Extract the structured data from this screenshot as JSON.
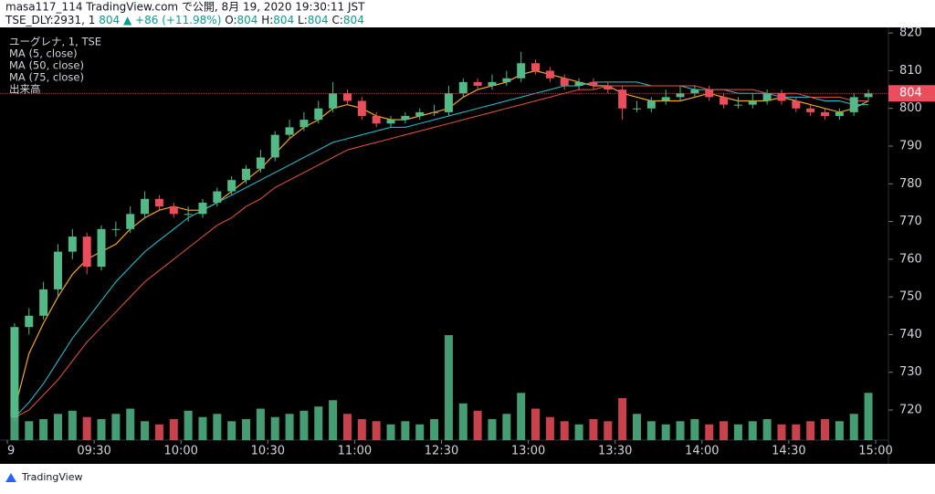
{
  "header": {
    "line1": "masa117_114 TradingView.com で公開, 8月 19, 2020 19:30:11 JST",
    "symbol": "TSE_DLY:2931, 1",
    "price": "804",
    "change": "▲ +86 (+11.98%)",
    "o_label": "O:",
    "o": "804",
    "h_label": "H:",
    "h": "804",
    "l_label": "L:",
    "l": "804",
    "c_label": "C:",
    "c": "804"
  },
  "footer": {
    "brand": "TradingView"
  },
  "chart_data": {
    "type": "candlestick",
    "title": "ユーグレナ, 1, TSE",
    "volume_label": "出来高",
    "up_color": "#53b987",
    "down_color": "#eb4d5c",
    "categories": [
      "09:00",
      "09:05",
      "09:10",
      "09:15",
      "09:20",
      "09:25",
      "09:30",
      "09:35",
      "09:40",
      "09:45",
      "09:50",
      "09:55",
      "10:00",
      "10:05",
      "10:10",
      "10:15",
      "10:20",
      "10:25",
      "10:30",
      "10:35",
      "10:40",
      "10:45",
      "10:50",
      "10:55",
      "11:00",
      "11:05",
      "11:10",
      "11:15",
      "11:20",
      "11:25",
      "12:30",
      "12:35",
      "12:40",
      "12:45",
      "12:50",
      "12:55",
      "13:00",
      "13:05",
      "13:10",
      "13:15",
      "13:20",
      "13:25",
      "13:30",
      "13:35",
      "13:40",
      "13:45",
      "13:50",
      "13:55",
      "14:00",
      "14:05",
      "14:10",
      "14:15",
      "14:20",
      "14:25",
      "14:30",
      "14:35",
      "14:40",
      "14:45",
      "14:50",
      "14:55"
    ],
    "candles": {
      "open": [
        718,
        742,
        745,
        752,
        762,
        766,
        758,
        768,
        768,
        772,
        776,
        774,
        772,
        772,
        775,
        778,
        781,
        784,
        787,
        793,
        795,
        797,
        800,
        804,
        802,
        798,
        796,
        797,
        798,
        799,
        799,
        804,
        807,
        806,
        807,
        808,
        812,
        810,
        808,
        806,
        807,
        806,
        805,
        800,
        800,
        802,
        803,
        804,
        805,
        803,
        801,
        801,
        802,
        804,
        802,
        800,
        799,
        798,
        799,
        803
      ],
      "high": [
        743,
        747,
        754,
        764,
        768,
        767,
        769,
        770,
        774,
        778,
        777,
        775,
        774,
        776,
        779,
        782,
        785,
        789,
        794,
        797,
        799,
        802,
        807,
        805,
        803,
        799,
        798,
        799,
        800,
        801,
        806,
        808,
        808,
        809,
        810,
        815,
        813,
        811,
        809,
        808,
        808,
        807,
        806,
        802,
        803,
        805,
        806,
        806,
        806,
        804,
        803,
        804,
        805,
        805,
        803,
        801,
        800,
        800,
        804,
        805
      ],
      "low": [
        717,
        740,
        744,
        750,
        760,
        756,
        757,
        766,
        767,
        771,
        773,
        771,
        770,
        771,
        774,
        777,
        780,
        783,
        786,
        792,
        794,
        796,
        799,
        801,
        797,
        795,
        795,
        796,
        797,
        798,
        798,
        803,
        805,
        805,
        806,
        807,
        809,
        807,
        805,
        805,
        805,
        804,
        797,
        799,
        799,
        801,
        802,
        803,
        802,
        800,
        800,
        800,
        801,
        801,
        799,
        798,
        797,
        797,
        798,
        802
      ],
      "close": [
        742,
        745,
        752,
        762,
        766,
        758,
        768,
        768,
        772,
        776,
        774,
        772,
        772,
        775,
        778,
        781,
        784,
        787,
        793,
        795,
        797,
        800,
        804,
        802,
        798,
        796,
        797,
        798,
        799,
        799,
        804,
        807,
        806,
        807,
        808,
        812,
        810,
        808,
        806,
        807,
        806,
        805,
        800,
        800,
        802,
        803,
        804,
        805,
        803,
        801,
        801,
        802,
        804,
        802,
        800,
        799,
        798,
        799,
        803,
        804
      ]
    },
    "volume": [
      30,
      18,
      20,
      25,
      28,
      22,
      20,
      25,
      30,
      18,
      15,
      20,
      28,
      22,
      25,
      18,
      20,
      30,
      22,
      25,
      28,
      32,
      38,
      25,
      20,
      18,
      15,
      18,
      15,
      20,
      100,
      35,
      28,
      20,
      25,
      45,
      30,
      22,
      18,
      15,
      20,
      18,
      40,
      25,
      18,
      15,
      18,
      20,
      15,
      18,
      15,
      18,
      20,
      15,
      15,
      18,
      20,
      18,
      25,
      45
    ],
    "series": [
      {
        "name": "MA (5, close)",
        "color": "#f5a623",
        "values": [
          720,
          735,
          743,
          750,
          756,
          760,
          762,
          764,
          768,
          771,
          773,
          774,
          773,
          773,
          775,
          778,
          781,
          784,
          788,
          792,
          795,
          797,
          800,
          801,
          800,
          798,
          797,
          797,
          798,
          799,
          800,
          803,
          805,
          806,
          807,
          809,
          810,
          809,
          808,
          807,
          806,
          806,
          804,
          803,
          802,
          802,
          802,
          803,
          804,
          803,
          802,
          802,
          802,
          803,
          802,
          801,
          800,
          799,
          800,
          802
        ]
      },
      {
        "name": "MA (50, close)",
        "color": "#26c6da",
        "values": [
          718,
          722,
          727,
          733,
          739,
          744,
          749,
          754,
          758,
          762,
          765,
          768,
          771,
          773,
          775,
          777,
          779,
          781,
          783,
          785,
          787,
          789,
          791,
          792,
          793,
          794,
          795,
          795,
          796,
          797,
          798,
          799,
          800,
          801,
          802,
          803,
          804,
          805,
          806,
          806,
          807,
          807,
          807,
          807,
          806,
          806,
          806,
          805,
          805,
          805,
          804,
          804,
          804,
          803,
          803,
          803,
          802,
          802,
          801,
          801
        ]
      },
      {
        "name": "MA (75, close)",
        "color": "#e8553e",
        "values": [
          718,
          720,
          724,
          728,
          733,
          738,
          742,
          746,
          750,
          754,
          757,
          760,
          763,
          766,
          769,
          771,
          774,
          776,
          779,
          781,
          783,
          785,
          787,
          789,
          790,
          791,
          792,
          793,
          794,
          795,
          796,
          797,
          798,
          799,
          800,
          801,
          802,
          803,
          804,
          805,
          805,
          806,
          806,
          806,
          806,
          806,
          806,
          806,
          805,
          805,
          805,
          805,
          804,
          804,
          804,
          803,
          803,
          803,
          802,
          802
        ]
      }
    ],
    "ylim": [
      712,
      821.5
    ],
    "yticks": [
      720,
      730,
      740,
      750,
      760,
      770,
      780,
      790,
      800,
      810,
      820
    ],
    "xticks": [
      {
        "value": "09:00",
        "label": "9"
      },
      "09:30",
      "10:00",
      "10:30",
      "11:00",
      "12:30",
      "13:00",
      "13:30",
      "14:00",
      "14:30",
      "15:00"
    ]
  }
}
